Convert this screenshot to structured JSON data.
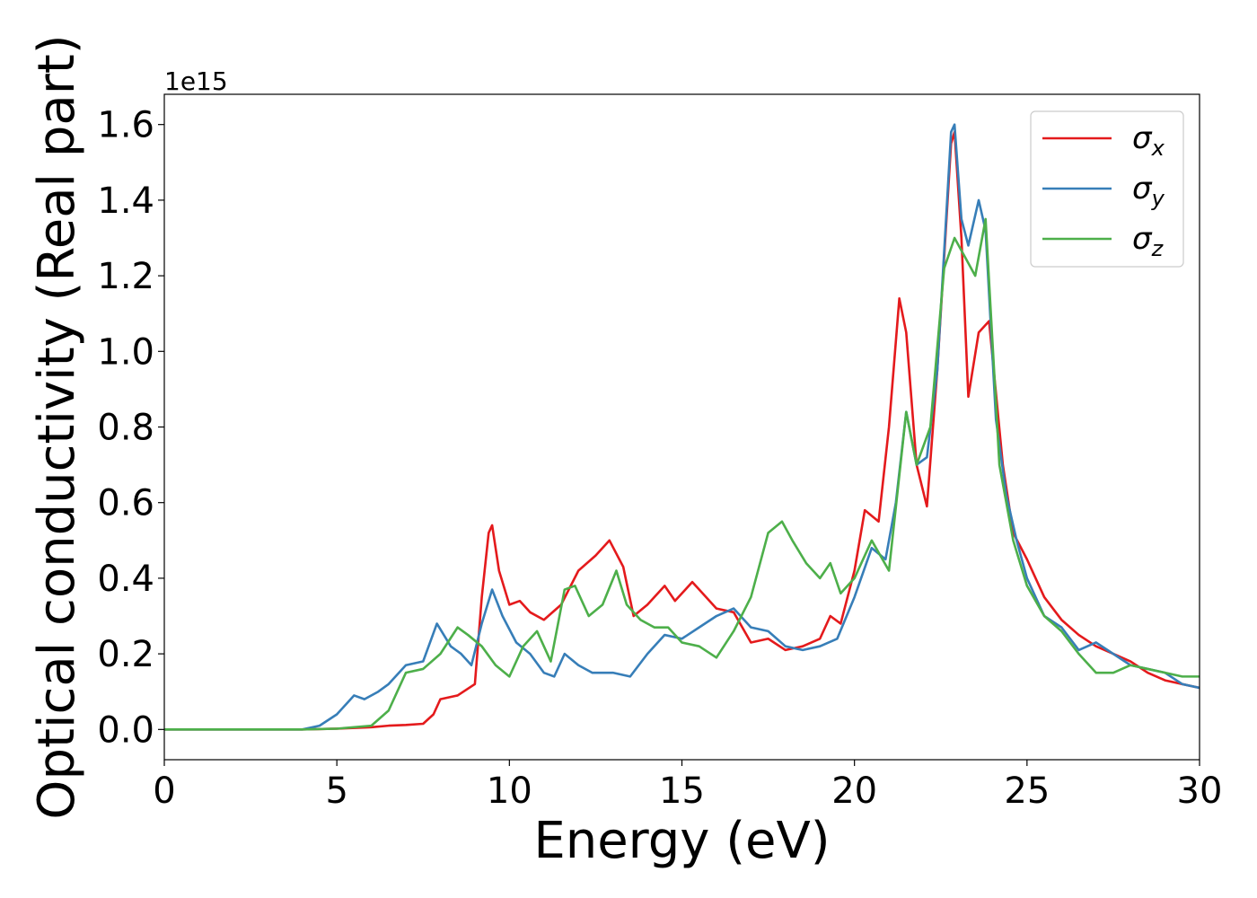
{
  "chart_data": {
    "type": "line",
    "xlabel": "Energy (eV)",
    "ylabel": "Optical conductivity (Real part)",
    "offset_text": "1e15",
    "xlim": [
      0,
      30
    ],
    "ylim": [
      -0.08,
      1.68
    ],
    "xticks": [
      0,
      5,
      10,
      15,
      20,
      25,
      30
    ],
    "yticks": [
      0.0,
      0.2,
      0.4,
      0.6,
      0.8,
      1.0,
      1.2,
      1.4,
      1.6
    ],
    "grid": false,
    "legend_position": "top-right",
    "series": [
      {
        "name": "σx",
        "symbol": "σ",
        "subscript": "x",
        "color": "#e41a1c",
        "x": [
          0,
          4,
          5,
          6,
          6.5,
          7,
          7.5,
          7.8,
          8,
          8.5,
          9,
          9.2,
          9.4,
          9.5,
          9.7,
          10,
          10.3,
          10.6,
          11,
          11.5,
          12,
          12.5,
          12.9,
          13.3,
          13.6,
          14,
          14.5,
          14.8,
          15,
          15.3,
          15.5,
          16,
          16.5,
          17,
          17.5,
          18,
          18.5,
          19,
          19.3,
          19.6,
          20,
          20.3,
          20.7,
          21,
          21.3,
          21.5,
          21.8,
          22.1,
          22.4,
          22.8,
          22.9,
          23.1,
          23.3,
          23.6,
          23.9,
          24.3,
          24.6,
          25,
          25.5,
          26,
          26.5,
          27,
          27.5,
          28,
          28.5,
          29,
          29.5,
          30
        ],
        "y": [
          0,
          0,
          0.002,
          0.006,
          0.01,
          0.012,
          0.015,
          0.04,
          0.08,
          0.09,
          0.12,
          0.35,
          0.52,
          0.54,
          0.42,
          0.33,
          0.34,
          0.31,
          0.29,
          0.33,
          0.42,
          0.46,
          0.5,
          0.43,
          0.3,
          0.33,
          0.38,
          0.34,
          0.36,
          0.39,
          0.37,
          0.32,
          0.31,
          0.23,
          0.24,
          0.21,
          0.22,
          0.24,
          0.3,
          0.28,
          0.42,
          0.58,
          0.55,
          0.8,
          1.14,
          1.05,
          0.7,
          0.59,
          0.95,
          1.55,
          1.58,
          1.3,
          0.88,
          1.05,
          1.08,
          0.7,
          0.52,
          0.45,
          0.35,
          0.29,
          0.25,
          0.22,
          0.2,
          0.18,
          0.15,
          0.13,
          0.12,
          0.11
        ]
      },
      {
        "name": "σy",
        "symbol": "σ",
        "subscript": "y",
        "color": "#377eb8",
        "x": [
          0,
          4,
          4.5,
          5,
          5.3,
          5.5,
          5.8,
          6.2,
          6.5,
          7,
          7.5,
          7.9,
          8.3,
          8.6,
          8.9,
          9.2,
          9.5,
          9.8,
          10.2,
          10.6,
          11,
          11.3,
          11.6,
          12,
          12.4,
          13,
          13.5,
          14,
          14.5,
          15,
          15.5,
          16,
          16.5,
          17,
          17.5,
          18,
          18.5,
          19,
          19.5,
          20,
          20.5,
          20.9,
          21.2,
          21.5,
          21.8,
          22.1,
          22.4,
          22.8,
          22.9,
          23.1,
          23.3,
          23.6,
          23.8,
          24.1,
          24.4,
          24.7,
          25,
          25.5,
          26,
          26.5,
          27,
          27.5,
          28,
          28.5,
          29,
          29.5,
          30
        ],
        "y": [
          0,
          0,
          0.01,
          0.04,
          0.07,
          0.09,
          0.08,
          0.1,
          0.12,
          0.17,
          0.18,
          0.28,
          0.22,
          0.2,
          0.17,
          0.28,
          0.37,
          0.3,
          0.23,
          0.2,
          0.15,
          0.14,
          0.2,
          0.17,
          0.15,
          0.15,
          0.14,
          0.2,
          0.25,
          0.24,
          0.27,
          0.3,
          0.32,
          0.27,
          0.26,
          0.22,
          0.21,
          0.22,
          0.24,
          0.35,
          0.48,
          0.45,
          0.6,
          0.84,
          0.7,
          0.72,
          0.95,
          1.58,
          1.6,
          1.35,
          1.28,
          1.4,
          1.32,
          0.82,
          0.62,
          0.5,
          0.4,
          0.3,
          0.27,
          0.21,
          0.23,
          0.2,
          0.17,
          0.16,
          0.15,
          0.12,
          0.11
        ]
      },
      {
        "name": "σz",
        "symbol": "σ",
        "subscript": "z",
        "color": "#4daf4a",
        "x": [
          0,
          4,
          5,
          6,
          6.5,
          7,
          7.5,
          8,
          8.5,
          8.8,
          9.2,
          9.6,
          10,
          10.4,
          10.8,
          11.2,
          11.6,
          11.9,
          12.3,
          12.7,
          13.1,
          13.4,
          13.8,
          14.2,
          14.6,
          15,
          15.5,
          16,
          16.5,
          17,
          17.5,
          17.9,
          18.2,
          18.6,
          19,
          19.3,
          19.6,
          20,
          20.5,
          21,
          21.5,
          21.8,
          22.2,
          22.6,
          22.9,
          23.2,
          23.5,
          23.8,
          24.2,
          24.6,
          25,
          25.5,
          26,
          26.5,
          27,
          27.5,
          28,
          28.5,
          29,
          29.5,
          30
        ],
        "y": [
          0,
          0,
          0.002,
          0.01,
          0.05,
          0.15,
          0.16,
          0.2,
          0.27,
          0.25,
          0.22,
          0.17,
          0.14,
          0.22,
          0.26,
          0.18,
          0.37,
          0.38,
          0.3,
          0.33,
          0.42,
          0.33,
          0.29,
          0.27,
          0.27,
          0.23,
          0.22,
          0.19,
          0.26,
          0.35,
          0.52,
          0.55,
          0.5,
          0.44,
          0.4,
          0.44,
          0.36,
          0.4,
          0.5,
          0.42,
          0.84,
          0.7,
          0.8,
          1.22,
          1.3,
          1.25,
          1.2,
          1.35,
          0.7,
          0.5,
          0.38,
          0.3,
          0.26,
          0.2,
          0.15,
          0.15,
          0.17,
          0.16,
          0.15,
          0.14,
          0.14
        ]
      }
    ]
  }
}
